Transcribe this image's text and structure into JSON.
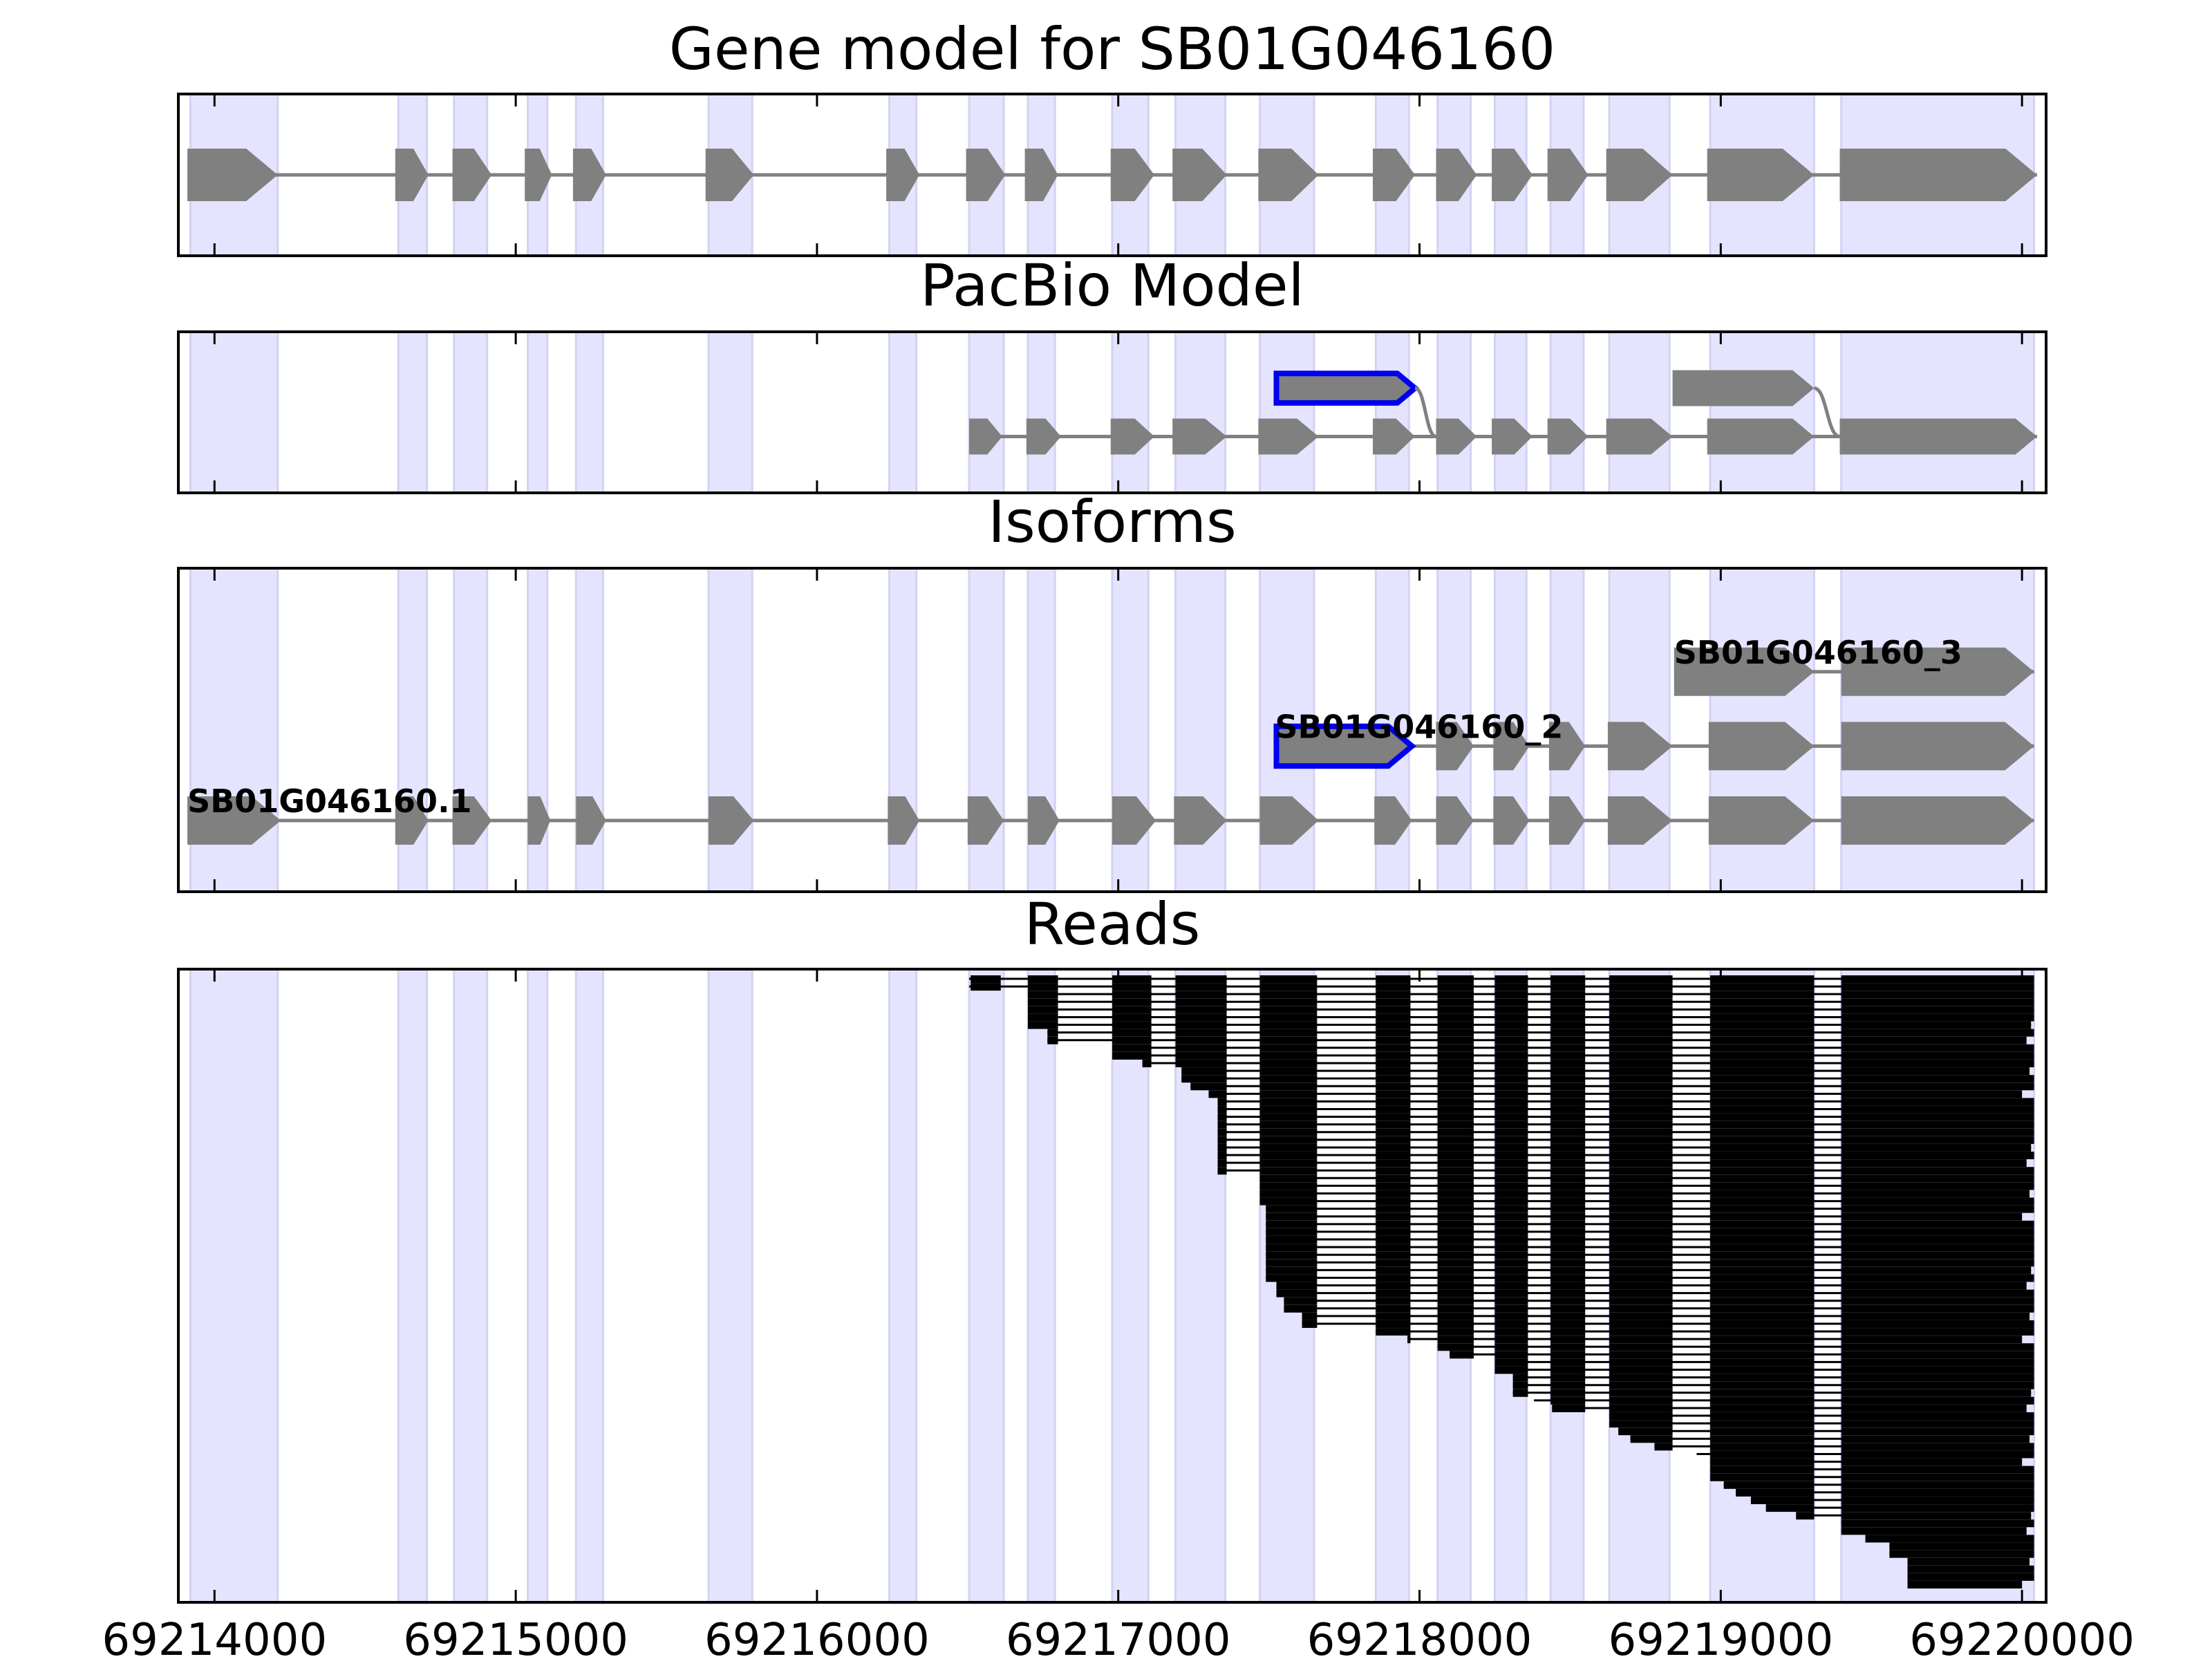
{
  "figure": {
    "xmin": 69213880,
    "xmax": 69220080,
    "colors": {
      "shade": "#e4e4ff",
      "shade_edge": "#d2d2f4",
      "feature": "#808080",
      "highlight": "#0000ee",
      "read": "#000000",
      "axis": "#000000"
    },
    "x_ticks": [
      {
        "value": 69214000,
        "label": "69214000"
      },
      {
        "value": 69215000,
        "label": "69215000"
      },
      {
        "value": 69216000,
        "label": "69216000"
      },
      {
        "value": 69217000,
        "label": "69217000"
      },
      {
        "value": 69218000,
        "label": "69218000"
      },
      {
        "value": 69219000,
        "label": "69219000"
      },
      {
        "value": 69220000,
        "label": "69220000"
      }
    ],
    "exon_regions": [
      [
        69213920,
        69214210
      ],
      [
        69214610,
        69214705
      ],
      [
        69214795,
        69214905
      ],
      [
        69215040,
        69215105
      ],
      [
        69215200,
        69215290
      ],
      [
        69215640,
        69215785
      ],
      [
        69216240,
        69216330
      ],
      [
        69216505,
        69216620
      ],
      [
        69216700,
        69216790
      ],
      [
        69216980,
        69217100
      ],
      [
        69217190,
        69217355
      ],
      [
        69217470,
        69217650
      ],
      [
        69217855,
        69217965
      ],
      [
        69218060,
        69218170
      ],
      [
        69218250,
        69218355
      ],
      [
        69218435,
        69218545
      ],
      [
        69218630,
        69218830
      ],
      [
        69218965,
        69219310
      ],
      [
        69219400,
        69220040
      ]
    ]
  },
  "panels": [
    {
      "id": "gene-model",
      "title": "Gene model for SB01G046160",
      "rows": [
        {
          "y": 0.5,
          "exons": [
            [
              69213910,
              69214210
            ],
            [
              69214600,
              69214710
            ],
            [
              69214790,
              69214920
            ],
            [
              69215030,
              69215120
            ],
            [
              69215190,
              69215300
            ],
            [
              69215630,
              69215790
            ],
            [
              69216230,
              69216340
            ],
            [
              69216495,
              69216625
            ],
            [
              69216690,
              69216800
            ],
            [
              69216975,
              69217120
            ],
            [
              69217180,
              69217360
            ],
            [
              69217465,
              69217665
            ],
            [
              69217845,
              69217985
            ],
            [
              69218055,
              69218190
            ],
            [
              69218240,
              69218375
            ],
            [
              69218425,
              69218560
            ],
            [
              69218620,
              69218840
            ],
            [
              69218955,
              69219310
            ],
            [
              69219395,
              69220050
            ]
          ]
        }
      ]
    },
    {
      "id": "pacbio-model",
      "title": "PacBio Model",
      "rows": [
        {
          "y": 0.65,
          "exons": [
            [
              69216505,
              69216615
            ],
            [
              69216695,
              69216810
            ],
            [
              69216975,
              69217120
            ],
            [
              69217180,
              69217360
            ],
            [
              69217465,
              69217665
            ],
            [
              69217845,
              69217985
            ],
            [
              69218055,
              69218190
            ],
            [
              69218240,
              69218375
            ],
            [
              69218425,
              69218560
            ],
            [
              69218620,
              69218840
            ],
            [
              69218955,
              69219310
            ],
            [
              69219395,
              69220050
            ]
          ]
        },
        {
          "y": 0.35,
          "highlight": true,
          "exons": [
            [
              69217525,
              69217985
            ]
          ]
        },
        {
          "y": 0.35,
          "exons": [
            [
              69218840,
              69219310
            ]
          ]
        }
      ],
      "connectors": [
        [
          69217985,
          0.35,
          69218055,
          0.65
        ],
        [
          69219310,
          0.35,
          69219395,
          0.65
        ]
      ]
    },
    {
      "id": "isoforms",
      "title": "Isoforms",
      "rows": [
        {
          "y": 0.78,
          "label": "SB01G046160.1",
          "label_x": 69213910,
          "exons": [
            [
              69213910,
              69214220
            ],
            [
              69214600,
              69214710
            ],
            [
              69214790,
              69214920
            ],
            [
              69215040,
              69215115
            ],
            [
              69215200,
              69215300
            ],
            [
              69215640,
              69215790
            ],
            [
              69216235,
              69216340
            ],
            [
              69216500,
              69216620
            ],
            [
              69216700,
              69216805
            ],
            [
              69216980,
              69217125
            ],
            [
              69217185,
              69217360
            ],
            [
              69217470,
              69217665
            ],
            [
              69217850,
              69217975
            ],
            [
              69218055,
              69218180
            ],
            [
              69218245,
              69218365
            ],
            [
              69218430,
              69218550
            ],
            [
              69218625,
              69218840
            ],
            [
              69218960,
              69219310
            ],
            [
              69219400,
              69220040
            ]
          ]
        },
        {
          "y": 0.55,
          "label": "SB01G046160_2",
          "label_x": 69217520,
          "highlight_first": true,
          "exons": [
            [
              69217525,
              69217975
            ],
            [
              69218055,
              69218180
            ],
            [
              69218245,
              69218365
            ],
            [
              69218430,
              69218550
            ],
            [
              69218625,
              69218840
            ],
            [
              69218960,
              69219310
            ],
            [
              69219400,
              69220040
            ]
          ]
        },
        {
          "y": 0.32,
          "label": "SB01G046160_3",
          "label_x": 69218845,
          "exons": [
            [
              69218845,
              69219310
            ],
            [
              69219400,
              69220040
            ]
          ]
        }
      ]
    },
    {
      "id": "reads",
      "title": "Reads",
      "read_count": 80,
      "exons": [
        [
          69216510,
          69216610
        ],
        [
          69216700,
          69216800
        ],
        [
          69216980,
          69217110
        ],
        [
          69217190,
          69217360
        ],
        [
          69217470,
          69217660
        ],
        [
          69217855,
          69217970
        ],
        [
          69218060,
          69218180
        ],
        [
          69218250,
          69218360
        ],
        [
          69218435,
          69218550
        ],
        [
          69218630,
          69218840
        ],
        [
          69218965,
          69219310
        ],
        [
          69219400,
          69220040
        ]
      ],
      "start_profile": [
        [
          0,
          69216505
        ],
        [
          2,
          69216700
        ],
        [
          7,
          69216765
        ],
        [
          9,
          69216980
        ],
        [
          11,
          69217080
        ],
        [
          12,
          69217210
        ],
        [
          14,
          69217240
        ],
        [
          15,
          69217300
        ],
        [
          16,
          69217330
        ],
        [
          26,
          69217470
        ],
        [
          30,
          69217490
        ],
        [
          40,
          69217525
        ],
        [
          42,
          69217550
        ],
        [
          44,
          69217610
        ],
        [
          46,
          69217855
        ],
        [
          47,
          69217960
        ],
        [
          48,
          69218060
        ],
        [
          49,
          69218100
        ],
        [
          50,
          69218250
        ],
        [
          52,
          69218310
        ],
        [
          55,
          69218380
        ],
        [
          56,
          69218440
        ],
        [
          57,
          69218630
        ],
        [
          59,
          69218660
        ],
        [
          60,
          69218700
        ],
        [
          61,
          69218780
        ],
        [
          62,
          69218920
        ],
        [
          63,
          69218965
        ],
        [
          66,
          69219010
        ],
        [
          67,
          69219050
        ],
        [
          68,
          69219100
        ],
        [
          69,
          69219150
        ],
        [
          70,
          69219250
        ],
        [
          71,
          69219400
        ],
        [
          73,
          69219480
        ],
        [
          74,
          69219560
        ],
        [
          76,
          69219620
        ]
      ],
      "end_variation": [
        0,
        0,
        0,
        0,
        0,
        0,
        -10,
        0,
        -25,
        0,
        0,
        0,
        -15,
        0,
        0,
        -40
      ]
    }
  ]
}
